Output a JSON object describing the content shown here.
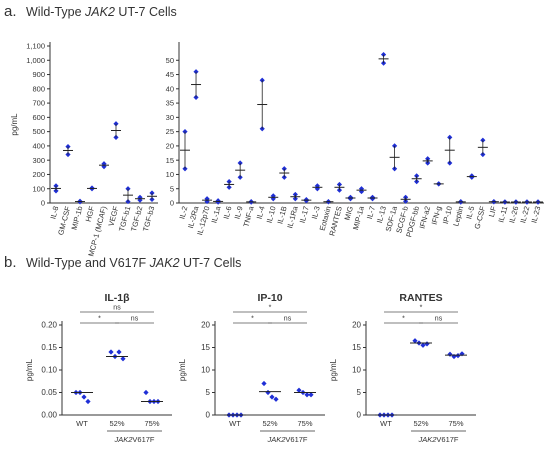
{
  "panel_a": {
    "letter": "a.",
    "title_prefix": "Wild-Type ",
    "title_gene": "JAK2",
    "title_suffix": " UT-7 Cells"
  },
  "panel_b": {
    "letter": "b.",
    "title_prefix": "Wild-Type and V617F ",
    "title_gene": "JAK2",
    "title_suffix": " UT-7 Cells"
  },
  "colors": {
    "point": "#1f2fd6",
    "axis": "#333333",
    "sig": "#555555"
  },
  "chart_data": [
    {
      "id": "a-left",
      "type": "scatter",
      "ylabel": "pg/mL",
      "ylim": [
        0,
        1100
      ],
      "yticks": [
        0,
        100,
        200,
        300,
        400,
        500,
        600,
        700,
        800,
        900,
        1000,
        1100
      ],
      "yticklabels": [
        "0",
        "100",
        "200",
        "300",
        "400",
        "500",
        "600",
        "700",
        "800",
        "900",
        "1,000",
        "1,100"
      ],
      "categories": [
        "IL-8",
        "GM-CSF",
        "MIP-1b",
        "HGF",
        "MCP-1 (MCAF)",
        "VEGF",
        "TGF-b1",
        "TGF-b2",
        "TGF-b3"
      ],
      "points": [
        [
          120,
          85
        ],
        [
          395,
          340
        ],
        [
          12,
          8
        ],
        [
          105,
          100
        ],
        [
          275,
          255
        ],
        [
          555,
          460
        ],
        [
          100,
          10
        ],
        [
          40,
          20
        ],
        [
          70,
          25
        ]
      ],
      "means": [
        102,
        368,
        10,
        102,
        265,
        508,
        55,
        30,
        47
      ]
    },
    {
      "id": "a-right",
      "type": "scatter",
      "ylim": [
        0,
        55
      ],
      "yticks": [
        0,
        5,
        10,
        15,
        20,
        25,
        30,
        35,
        40,
        45,
        50
      ],
      "categories": [
        "IL-2",
        "IL-2Ra",
        "IL-12p70",
        "IL-1a",
        "IL-6",
        "IL-9",
        "TNF-a",
        "IL-4",
        "IL-10",
        "IL-1B",
        "IL-1Ra",
        "IL-17",
        "IL-3",
        "Eotaxin",
        "RANTES",
        "MIG",
        "MIP-1a",
        "IL-7",
        "IL-13",
        "SDF-1a",
        "SCGF-b",
        "PDGF-bb",
        "IFN-a2",
        "IFN-g",
        "IP-10",
        "Leptin",
        "IL-5",
        "G-CSF",
        "LIF",
        "IL-11",
        "IL-26",
        "IL-22",
        "IL-23"
      ],
      "points": [
        [
          25,
          12
        ],
        [
          46,
          37
        ],
        [
          1.5,
          0.5
        ],
        [
          0.8,
          0.3
        ],
        [
          7.5,
          5.5
        ],
        [
          14,
          9
        ],
        [
          0.5,
          0.3
        ],
        [
          43,
          26
        ],
        [
          2.5,
          1.5
        ],
        [
          12,
          9
        ],
        [
          3,
          1.5
        ],
        [
          1.2,
          0.8
        ],
        [
          6,
          5
        ],
        [
          0.5,
          0.4
        ],
        [
          6.5,
          4.5
        ],
        [
          2,
          1.5
        ],
        [
          5,
          4
        ],
        [
          2,
          1.5
        ],
        [
          52,
          49
        ],
        [
          20,
          12
        ],
        [
          2,
          0.6
        ],
        [
          9.5,
          7.5
        ],
        [
          15.5,
          14
        ],
        [
          6.7,
          6.7
        ],
        [
          23,
          14
        ],
        [
          0.5,
          0.3
        ],
        [
          9.5,
          9
        ],
        [
          22,
          17
        ],
        [
          0.5,
          0.4
        ],
        [
          0.4,
          0.3
        ],
        [
          0.4,
          0.3
        ],
        [
          0.4,
          0.3
        ],
        [
          0.4,
          0.3
        ]
      ],
      "means": [
        18.5,
        41.5,
        1,
        0.55,
        6.5,
        11.5,
        0.4,
        34.5,
        2,
        10.5,
        2.2,
        1,
        5.5,
        0.45,
        5.5,
        1.75,
        4.5,
        1.75,
        50.5,
        16,
        1.3,
        8.5,
        14.75,
        6.7,
        18.5,
        0.4,
        9.25,
        19.5,
        0.45,
        0.35,
        0.35,
        0.35,
        0.35
      ]
    },
    {
      "id": "b-il1b",
      "type": "scatter",
      "title": "IL-1β",
      "ylabel": "pg/mL",
      "ylim": [
        0,
        0.2
      ],
      "yticks": [
        0,
        0.05,
        0.1,
        0.15,
        0.2
      ],
      "yticklabels": [
        "0.00",
        "0.05",
        "0.10",
        "0.15",
        "0.20"
      ],
      "categories": [
        "WT",
        "52%",
        "75%"
      ],
      "group_label_gene": "JAK2",
      "group_label_suffix": "V617F",
      "points": [
        [
          0.05,
          0.05,
          0.04,
          0.03
        ],
        [
          0.14,
          0.13,
          0.14,
          0.125
        ],
        [
          0.05,
          0.03,
          0.03,
          0.03
        ]
      ],
      "means": [
        0.05,
        0.13,
        0.03
      ],
      "sig": [
        {
          "from": 0,
          "to": 1,
          "label": "*",
          "level": 0
        },
        {
          "from": 1,
          "to": 2,
          "label": "ns",
          "level": 0
        },
        {
          "from": 0,
          "to": 2,
          "label": "ns",
          "level": 1
        }
      ]
    },
    {
      "id": "b-ip10",
      "type": "scatter",
      "title": "IP-10",
      "ylabel": "pg/mL",
      "ylim": [
        0,
        20
      ],
      "yticks": [
        0,
        5,
        10,
        15,
        20
      ],
      "yticklabels": [
        "0",
        "5",
        "10",
        "15",
        "20"
      ],
      "categories": [
        "WT",
        "52%",
        "75%"
      ],
      "group_label_gene": "JAK2",
      "group_label_suffix": "V617F",
      "points": [
        [
          0,
          0,
          0,
          0
        ],
        [
          7,
          5,
          4,
          3.5
        ],
        [
          5.5,
          5,
          4.5,
          4.5
        ]
      ],
      "means": [
        0,
        5.2,
        5
      ],
      "sig": [
        {
          "from": 0,
          "to": 1,
          "label": "*",
          "level": 0
        },
        {
          "from": 1,
          "to": 2,
          "label": "ns",
          "level": 0
        },
        {
          "from": 0,
          "to": 2,
          "label": "*",
          "level": 1
        }
      ]
    },
    {
      "id": "b-rantes",
      "type": "scatter",
      "title": "RANTES",
      "ylabel": "pg/mL",
      "ylim": [
        0,
        20
      ],
      "yticks": [
        0,
        5,
        10,
        15,
        20
      ],
      "yticklabels": [
        "0",
        "5",
        "10",
        "15",
        "20"
      ],
      "categories": [
        "WT",
        "52%",
        "75%"
      ],
      "group_label_gene": "JAK2",
      "group_label_suffix": "V617F",
      "points": [
        [
          0,
          0,
          0,
          0
        ],
        [
          16.5,
          16,
          15.5,
          15.8
        ],
        [
          13.5,
          13,
          13.2,
          13.6
        ]
      ],
      "means": [
        0,
        16,
        13.3
      ],
      "sig": [
        {
          "from": 0,
          "to": 1,
          "label": "*",
          "level": 0
        },
        {
          "from": 1,
          "to": 2,
          "label": "ns",
          "level": 0
        },
        {
          "from": 0,
          "to": 2,
          "label": "*",
          "level": 1
        }
      ]
    }
  ]
}
